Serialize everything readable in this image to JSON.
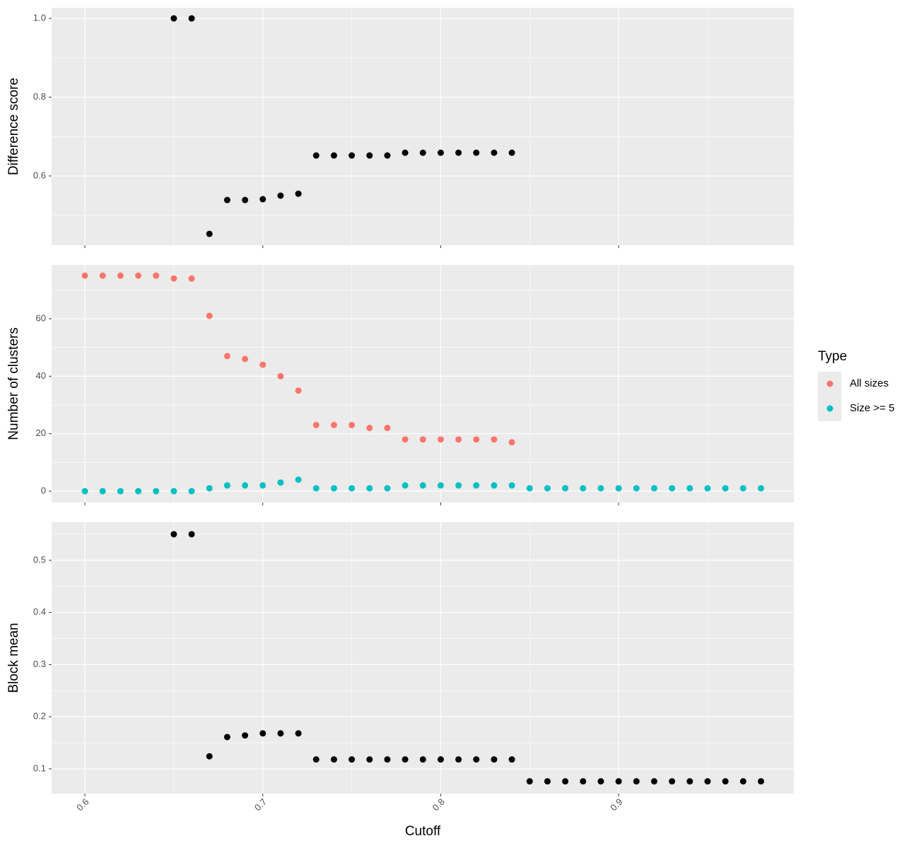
{
  "chart_data": [
    {
      "type": "scatter",
      "ylabel": "Difference score",
      "color": "#000000",
      "x": [
        0.65,
        0.66,
        0.67,
        0.68,
        0.69,
        0.7,
        0.71,
        0.72,
        0.73,
        0.74,
        0.75,
        0.76,
        0.77,
        0.78,
        0.79,
        0.8,
        0.81,
        0.82,
        0.83,
        0.84
      ],
      "values": [
        1.0,
        1.0,
        0.453,
        0.539,
        0.539,
        0.541,
        0.55,
        0.555,
        0.652,
        0.652,
        0.652,
        0.652,
        0.652,
        0.659,
        0.659,
        0.659,
        0.659,
        0.659,
        0.659,
        0.659
      ],
      "xlim": [
        0.5813,
        0.9985
      ],
      "xticks": [
        0.6,
        0.7,
        0.8,
        0.9
      ],
      "ylim": [
        0.4242,
        1.027
      ],
      "yticks": [
        0.6,
        0.8,
        {
          "value": 1,
          "label": "1.0"
        }
      ],
      "grid": true
    },
    {
      "type": "scatter",
      "ylabel": "Number of clusters",
      "x": [
        0.6,
        0.61,
        0.62,
        0.63,
        0.64,
        0.65,
        0.66,
        0.67,
        0.68,
        0.69,
        0.7,
        0.71,
        0.72,
        0.73,
        0.74,
        0.75,
        0.76,
        0.77,
        0.78,
        0.79,
        0.8,
        0.81,
        0.82,
        0.83,
        0.84,
        0.85,
        0.86,
        0.87,
        0.88,
        0.89,
        0.9,
        0.91,
        0.92,
        0.93,
        0.94,
        0.95,
        0.96,
        0.97,
        0.98
      ],
      "series": [
        {
          "name": "All sizes",
          "color": "#F8766D",
          "values": [
            75,
            75,
            75,
            75,
            75,
            74,
            74,
            61,
            47,
            46,
            44,
            40,
            35,
            23,
            23,
            23,
            22,
            22,
            18,
            18,
            18,
            18,
            18,
            18,
            17,
            null,
            null,
            null,
            null,
            null,
            null,
            null,
            null,
            null,
            null,
            null,
            null,
            null,
            null
          ]
        },
        {
          "name": "Size >= 5",
          "color": "#00BFC4",
          "values": [
            0,
            0,
            0,
            0,
            0,
            0,
            0,
            1,
            2,
            2,
            2,
            3,
            4,
            1,
            1,
            1,
            1,
            1,
            2,
            2,
            2,
            2,
            2,
            2,
            2,
            1,
            1,
            1,
            1,
            1,
            1,
            1,
            1,
            1,
            1,
            1,
            1,
            1,
            1
          ]
        }
      ],
      "legend_title": "Type",
      "legend": "right",
      "xlim": [
        0.5813,
        0.9985
      ],
      "xticks": [
        0.6,
        0.7,
        0.8,
        0.9
      ],
      "ylim": [
        -3.93,
        78.7
      ],
      "yticks": [
        0,
        20,
        40,
        60
      ],
      "grid": true
    },
    {
      "type": "scatter",
      "ylabel": "Block mean",
      "xlabel": "Cutoff",
      "color": "#000000",
      "x": [
        0.65,
        0.66,
        0.67,
        0.68,
        0.69,
        0.7,
        0.71,
        0.72,
        0.73,
        0.74,
        0.75,
        0.76,
        0.77,
        0.78,
        0.79,
        0.8,
        0.81,
        0.82,
        0.83,
        0.84,
        0.85,
        0.86,
        0.87,
        0.88,
        0.89,
        0.9,
        0.91,
        0.92,
        0.93,
        0.94,
        0.95,
        0.96,
        0.97,
        0.98
      ],
      "values": [
        0.55,
        0.55,
        0.124,
        0.161,
        0.164,
        0.168,
        0.168,
        0.168,
        0.118,
        0.118,
        0.118,
        0.118,
        0.118,
        0.118,
        0.118,
        0.118,
        0.118,
        0.118,
        0.118,
        0.118,
        0.076,
        0.076,
        0.076,
        0.076,
        0.076,
        0.076,
        0.076,
        0.076,
        0.076,
        0.076,
        0.076,
        0.076,
        0.076,
        0.076
      ],
      "xlim": [
        0.5813,
        0.9985
      ],
      "xticks": [
        0.6,
        0.7,
        0.8,
        0.9
      ],
      "ylim": [
        0.0525,
        0.573
      ],
      "yticks": [
        0.1,
        0.2,
        0.3,
        0.4,
        0.5
      ],
      "grid": true
    }
  ]
}
